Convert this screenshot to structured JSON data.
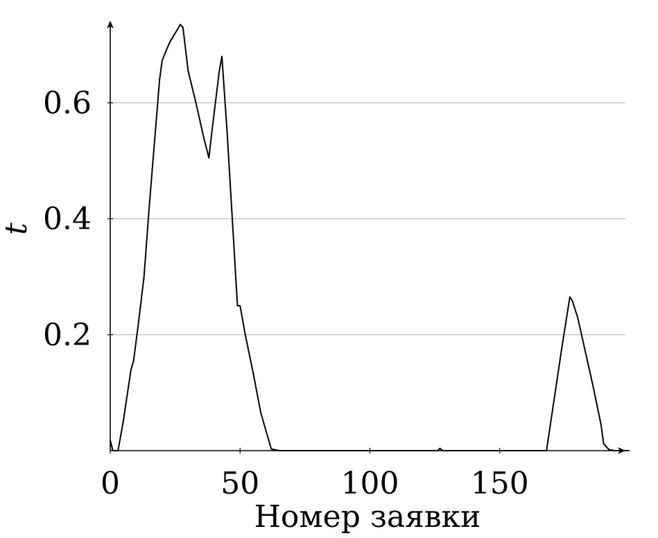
{
  "chart_data": {
    "type": "line",
    "title": "",
    "xlabel": "Номер заявки",
    "ylabel": "t",
    "xlim": [
      0,
      200
    ],
    "ylim": [
      0,
      0.74
    ],
    "x_ticks": [
      0,
      50,
      100,
      150
    ],
    "x_tick_labels": [
      "0",
      "50",
      "100",
      "150"
    ],
    "y_ticks": [
      0.2,
      0.4,
      0.6
    ],
    "y_tick_labels": [
      "0.2",
      "0.4",
      "0.6"
    ],
    "grid": "horizontal",
    "grid_color": "#bdbdbd",
    "line_color": "#000000",
    "series": [
      {
        "x": [
          0,
          1,
          2,
          3,
          5,
          8,
          9,
          11,
          13,
          15,
          17,
          19,
          20,
          22,
          23,
          25,
          27,
          28,
          30,
          33,
          36,
          38,
          39,
          42,
          43,
          45,
          47,
          49,
          50,
          52,
          55,
          58,
          62,
          63,
          65,
          70,
          80,
          100,
          120,
          126,
          127,
          128,
          140,
          150,
          160,
          168,
          171,
          174,
          177,
          178,
          180,
          183,
          186,
          189,
          190,
          192,
          194,
          200
        ],
        "y": [
          0.018,
          0.0,
          0.0,
          0.0,
          0.05,
          0.14,
          0.155,
          0.225,
          0.3,
          0.42,
          0.53,
          0.64,
          0.673,
          0.695,
          0.705,
          0.72,
          0.735,
          0.73,
          0.655,
          0.6,
          0.54,
          0.505,
          0.545,
          0.655,
          0.68,
          0.55,
          0.4,
          0.25,
          0.25,
          0.2,
          0.135,
          0.065,
          0.003,
          0.002,
          0.0,
          0.0,
          0.0,
          0.0,
          0.0,
          0.0,
          0.004,
          0.0,
          0.0,
          0.0,
          0.0,
          0.0,
          0.09,
          0.18,
          0.265,
          0.258,
          0.23,
          0.17,
          0.11,
          0.045,
          0.012,
          0.002,
          0.0,
          0.0
        ]
      }
    ]
  }
}
